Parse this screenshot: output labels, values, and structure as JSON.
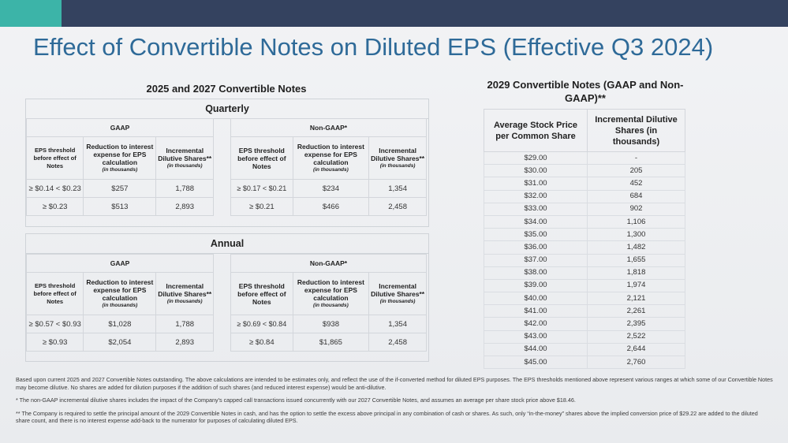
{
  "title": "Effect of Convertible Notes on Diluted EPS (Effective Q3 2024)",
  "left_section": {
    "title": "2025 and 2027 Convertible Notes",
    "quarterly": {
      "label": "Quarterly",
      "gaap": {
        "label": "GAAP",
        "headers": {
          "threshold": "EPS threshold before effect of Notes",
          "reduction": "Reduction to interest expense for EPS calculation",
          "reduction_sub": "(in thousands)",
          "incremental": "Incremental Dilutive Shares**",
          "incremental_sub": "(in thousands)"
        },
        "rows": [
          {
            "threshold": "≥ $0.14 < $0.23",
            "reduction": "$257",
            "shares": "1,788"
          },
          {
            "threshold": "≥ $0.23",
            "reduction": "$513",
            "shares": "2,893"
          }
        ]
      },
      "nongaap": {
        "label": "Non-GAAP*",
        "headers": {
          "threshold": "EPS threshold before effect of Notes",
          "reduction": "Reduction to interest expense for EPS calculation",
          "reduction_sub": "(in thousands)",
          "incremental": "Incremental Dilutive Shares**",
          "incremental_sub": "(in thousands)"
        },
        "rows": [
          {
            "threshold": "≥ $0.17 < $0.21",
            "reduction": "$234",
            "shares": "1,354"
          },
          {
            "threshold": "≥ $0.21",
            "reduction": "$466",
            "shares": "2,458"
          }
        ]
      }
    },
    "annual": {
      "label": "Annual",
      "gaap": {
        "label": "GAAP",
        "headers": {
          "threshold": "EPS threshold before effect of Notes",
          "reduction": "Reduction to interest expense for EPS calculation",
          "reduction_sub": "(in thousands)",
          "incremental": "Incremental Dilutive Shares**",
          "incremental_sub": "(in thousands)"
        },
        "rows": [
          {
            "threshold": "≥ $0.57 < $0.93",
            "reduction": "$1,028",
            "shares": "1,788"
          },
          {
            "threshold": "≥ $0.93",
            "reduction": "$2,054",
            "shares": "2,893"
          }
        ]
      },
      "nongaap": {
        "label": "Non-GAAP*",
        "headers": {
          "threshold": "EPS threshold before effect of Notes",
          "reduction": "Reduction to interest expense for EPS calculation",
          "reduction_sub": "(in thousands)",
          "incremental": "Incremental Dilutive Shares**",
          "incremental_sub": "(in thousands)"
        },
        "rows": [
          {
            "threshold": "≥ $0.69 < $0.84",
            "reduction": "$938",
            "shares": "1,354"
          },
          {
            "threshold": "≥ $0.84",
            "reduction": "$1,865",
            "shares": "2,458"
          }
        ]
      }
    }
  },
  "right_section": {
    "title": "2029 Convertible Notes (GAAP and Non-GAAP)**",
    "col1": "Average Stock Price per Common Share",
    "col2": "Incremental Dilutive Shares (in thousands)",
    "rows": [
      [
        "$29.00",
        "-"
      ],
      [
        "$30.00",
        "205"
      ],
      [
        "$31.00",
        "452"
      ],
      [
        "$32.00",
        "684"
      ],
      [
        "$33.00",
        "902"
      ],
      [
        "$34.00",
        "1,106"
      ],
      [
        "$35.00",
        "1,300"
      ],
      [
        "$36.00",
        "1,482"
      ],
      [
        "$37.00",
        "1,655"
      ],
      [
        "$38.00",
        "1,818"
      ],
      [
        "$39.00",
        "1,974"
      ],
      [
        "$40.00",
        "2,121"
      ],
      [
        "$41.00",
        "2,261"
      ],
      [
        "$42.00",
        "2,395"
      ],
      [
        "$43.00",
        "2,522"
      ],
      [
        "$44.00",
        "2,644"
      ],
      [
        "$45.00",
        "2,760"
      ]
    ]
  },
  "footnotes": {
    "main": "Based upon current 2025 and 2027 Convertible Notes outstanding. The above calculations are intended to be estimates only, and reflect the use of the if-converted method for diluted EPS purposes. The EPS thresholds mentioned above represent various ranges at which some of our Convertible Notes may become dilutive. No shares are added for dilution purposes if the addition of such shares (and reduced interest expense) would be anti-dilutive.",
    "star": "* The non-GAAP incremental dilutive shares includes the impact of the Company's capped call transactions issued concurrently with our 2027 Convertible Notes, and assumes an average per share stock price above $18.46.",
    "double_star": "** The Company is required to settle the principal amount of the 2029 Convertible Notes in cash, and has the option to settle the excess above principal in any combination of cash or shares. As such, only “in-the-money” shares above the implied conversion price of $29.22 are added to the diluted share count, and there is no interest expense add-back to the numerator for purposes of calculating diluted EPS."
  },
  "colors": {
    "topbar": "#34425f",
    "accent": "#3cb4a8",
    "title": "#2e6a98"
  }
}
